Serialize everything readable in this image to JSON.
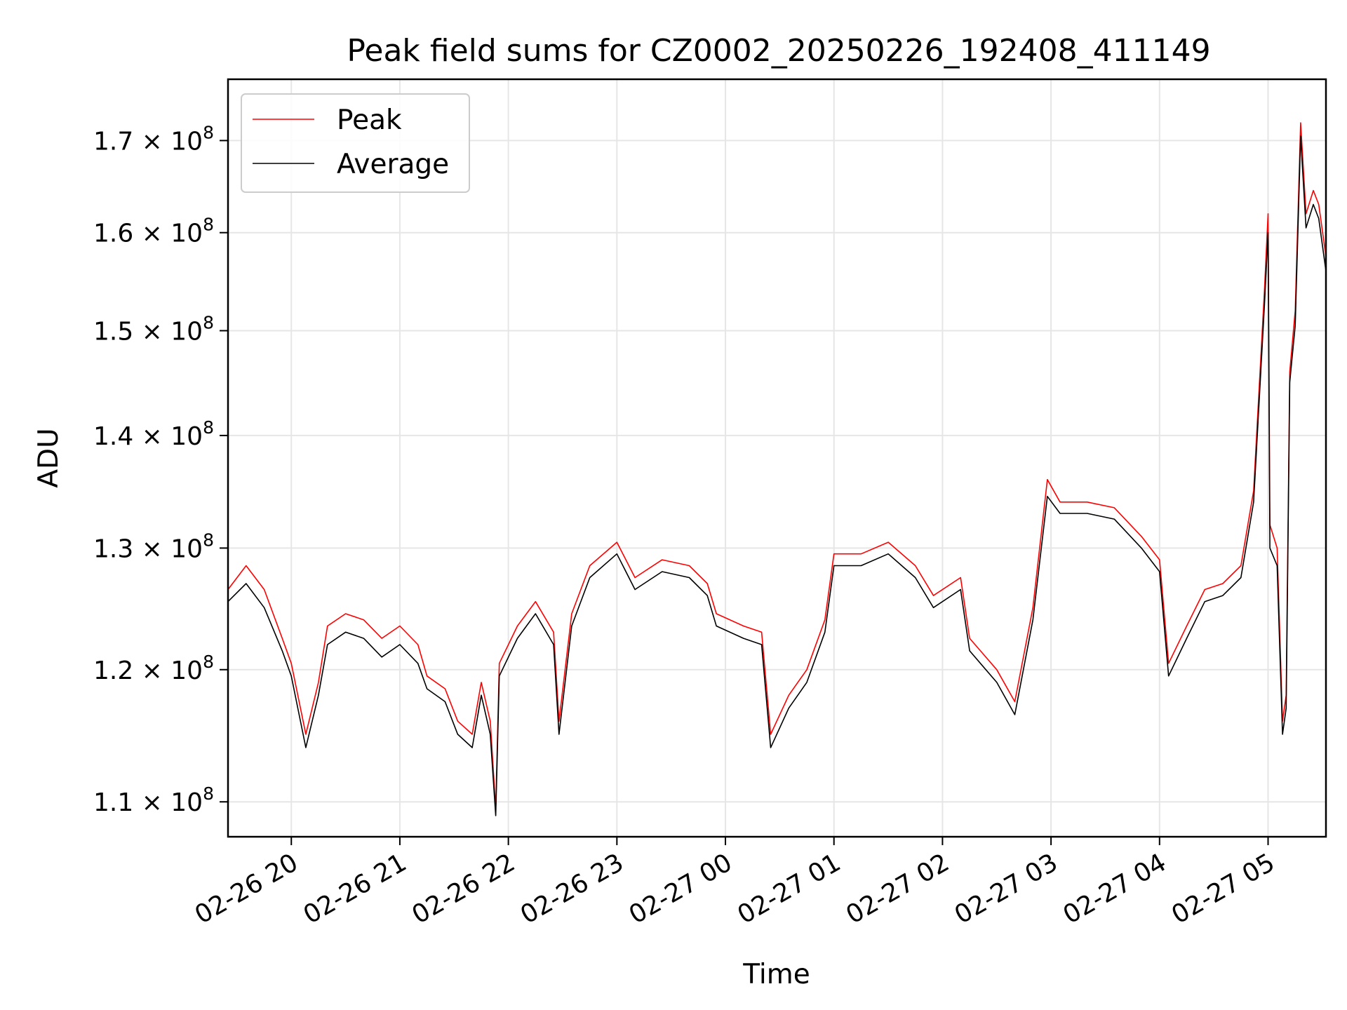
{
  "chart_data": {
    "type": "line",
    "title": "Peak field sums for CZ0002_20250226_192408_411149",
    "xlabel": "Time",
    "ylabel": "ADU",
    "yscale": "log",
    "grid": true,
    "legend_position": "top-left",
    "xlim": [
      "02-26 19:25",
      "02-27 05:32"
    ],
    "ylim": [
      107500000,
      177000000
    ],
    "x_ticks": [
      "02-26 20",
      "02-26 21",
      "02-26 22",
      "02-26 23",
      "02-27 00",
      "02-27 01",
      "02-27 02",
      "02-27 03",
      "02-27 04",
      "02-27 05"
    ],
    "y_ticks": [
      {
        "value": 110000000,
        "mantissa": "1.1",
        "times": "×",
        "base": "10",
        "exp": "8"
      },
      {
        "value": 120000000,
        "mantissa": "1.2",
        "times": "×",
        "base": "10",
        "exp": "8"
      },
      {
        "value": 130000000,
        "mantissa": "1.3",
        "times": "×",
        "base": "10",
        "exp": "8"
      },
      {
        "value": 140000000,
        "mantissa": "1.4",
        "times": "×",
        "base": "10",
        "exp": "8"
      },
      {
        "value": 150000000,
        "mantissa": "1.5",
        "times": "×",
        "base": "10",
        "exp": "8"
      },
      {
        "value": 160000000,
        "mantissa": "1.6",
        "times": "×",
        "base": "10",
        "exp": "8"
      },
      {
        "value": 170000000,
        "mantissa": "1.7",
        "times": "×",
        "base": "10",
        "exp": "8"
      }
    ],
    "series": [
      {
        "name": "Peak",
        "color": "#ff0000",
        "points": [
          [
            "02-26 19:25",
            126500000
          ],
          [
            "02-26 19:35",
            128500000
          ],
          [
            "02-26 19:45",
            126500000
          ],
          [
            "02-26 19:55",
            122500000
          ],
          [
            "02-26 20:00",
            120500000
          ],
          [
            "02-26 20:08",
            115000000
          ],
          [
            "02-26 20:15",
            119000000
          ],
          [
            "02-26 20:20",
            123500000
          ],
          [
            "02-26 20:30",
            124500000
          ],
          [
            "02-26 20:40",
            124000000
          ],
          [
            "02-26 20:50",
            122500000
          ],
          [
            "02-26 21:00",
            123500000
          ],
          [
            "02-26 21:10",
            122000000
          ],
          [
            "02-26 21:15",
            119500000
          ],
          [
            "02-26 21:25",
            118500000
          ],
          [
            "02-26 21:32",
            116000000
          ],
          [
            "02-26 21:40",
            115000000
          ],
          [
            "02-26 21:45",
            119000000
          ],
          [
            "02-26 21:50",
            116000000
          ],
          [
            "02-26 21:53",
            109500000
          ],
          [
            "02-26 21:55",
            120500000
          ],
          [
            "02-26 22:05",
            123500000
          ],
          [
            "02-26 22:15",
            125500000
          ],
          [
            "02-26 22:25",
            123000000
          ],
          [
            "02-26 22:28",
            116000000
          ],
          [
            "02-26 22:35",
            124500000
          ],
          [
            "02-26 22:45",
            128500000
          ],
          [
            "02-26 23:00",
            130500000
          ],
          [
            "02-26 23:10",
            127500000
          ],
          [
            "02-26 23:25",
            129000000
          ],
          [
            "02-26 23:40",
            128500000
          ],
          [
            "02-26 23:50",
            127000000
          ],
          [
            "02-26 23:55",
            124500000
          ],
          [
            "02-27 00:10",
            123500000
          ],
          [
            "02-27 00:20",
            123000000
          ],
          [
            "02-27 00:25",
            115000000
          ],
          [
            "02-27 00:35",
            118000000
          ],
          [
            "02-27 00:45",
            120000000
          ],
          [
            "02-27 00:55",
            124000000
          ],
          [
            "02-27 01:00",
            129500000
          ],
          [
            "02-27 01:15",
            129500000
          ],
          [
            "02-27 01:30",
            130500000
          ],
          [
            "02-27 01:45",
            128500000
          ],
          [
            "02-27 01:55",
            126000000
          ],
          [
            "02-27 02:10",
            127500000
          ],
          [
            "02-27 02:15",
            122500000
          ],
          [
            "02-27 02:30",
            120000000
          ],
          [
            "02-27 02:40",
            117500000
          ],
          [
            "02-27 02:50",
            125000000
          ],
          [
            "02-27 02:58",
            136000000
          ],
          [
            "02-27 03:05",
            134000000
          ],
          [
            "02-27 03:20",
            134000000
          ],
          [
            "02-27 03:35",
            133500000
          ],
          [
            "02-27 03:50",
            131000000
          ],
          [
            "02-27 04:00",
            129000000
          ],
          [
            "02-27 04:05",
            120500000
          ],
          [
            "02-27 04:15",
            123500000
          ],
          [
            "02-27 04:25",
            126500000
          ],
          [
            "02-27 04:35",
            127000000
          ],
          [
            "02-27 04:45",
            128500000
          ],
          [
            "02-27 04:52",
            135000000
          ],
          [
            "02-27 04:58",
            154000000
          ],
          [
            "02-27 05:00",
            162000000
          ],
          [
            "02-27 05:01",
            132000000
          ],
          [
            "02-27 05:05",
            130000000
          ],
          [
            "02-27 05:08",
            116000000
          ],
          [
            "02-27 05:10",
            118000000
          ],
          [
            "02-27 05:12",
            146000000
          ],
          [
            "02-27 05:15",
            152000000
          ],
          [
            "02-27 05:18",
            172000000
          ],
          [
            "02-27 05:21",
            162000000
          ],
          [
            "02-27 05:25",
            164500000
          ],
          [
            "02-27 05:28",
            163000000
          ],
          [
            "02-27 05:32",
            157500000
          ]
        ]
      },
      {
        "name": "Average",
        "color": "#000000",
        "points": [
          [
            "02-26 19:25",
            125500000
          ],
          [
            "02-26 19:35",
            127000000
          ],
          [
            "02-26 19:45",
            125000000
          ],
          [
            "02-26 19:55",
            121500000
          ],
          [
            "02-26 20:00",
            119500000
          ],
          [
            "02-26 20:08",
            114000000
          ],
          [
            "02-26 20:15",
            118000000
          ],
          [
            "02-26 20:20",
            122000000
          ],
          [
            "02-26 20:30",
            123000000
          ],
          [
            "02-26 20:40",
            122500000
          ],
          [
            "02-26 20:50",
            121000000
          ],
          [
            "02-26 21:00",
            122000000
          ],
          [
            "02-26 21:10",
            120500000
          ],
          [
            "02-26 21:15",
            118500000
          ],
          [
            "02-26 21:25",
            117500000
          ],
          [
            "02-26 21:32",
            115000000
          ],
          [
            "02-26 21:40",
            114000000
          ],
          [
            "02-26 21:45",
            118000000
          ],
          [
            "02-26 21:50",
            115000000
          ],
          [
            "02-26 21:53",
            109000000
          ],
          [
            "02-26 21:55",
            119500000
          ],
          [
            "02-26 22:05",
            122500000
          ],
          [
            "02-26 22:15",
            124500000
          ],
          [
            "02-26 22:25",
            122000000
          ],
          [
            "02-26 22:28",
            115000000
          ],
          [
            "02-26 22:35",
            123500000
          ],
          [
            "02-26 22:45",
            127500000
          ],
          [
            "02-26 23:00",
            129500000
          ],
          [
            "02-26 23:10",
            126500000
          ],
          [
            "02-26 23:25",
            128000000
          ],
          [
            "02-26 23:40",
            127500000
          ],
          [
            "02-26 23:50",
            126000000
          ],
          [
            "02-26 23:55",
            123500000
          ],
          [
            "02-27 00:10",
            122500000
          ],
          [
            "02-27 00:20",
            122000000
          ],
          [
            "02-27 00:25",
            114000000
          ],
          [
            "02-27 00:35",
            117000000
          ],
          [
            "02-27 00:45",
            119000000
          ],
          [
            "02-27 00:55",
            123000000
          ],
          [
            "02-27 01:00",
            128500000
          ],
          [
            "02-27 01:15",
            128500000
          ],
          [
            "02-27 01:30",
            129500000
          ],
          [
            "02-27 01:45",
            127500000
          ],
          [
            "02-27 01:55",
            125000000
          ],
          [
            "02-27 02:10",
            126500000
          ],
          [
            "02-27 02:15",
            121500000
          ],
          [
            "02-27 02:30",
            119000000
          ],
          [
            "02-27 02:40",
            116500000
          ],
          [
            "02-27 02:50",
            124000000
          ],
          [
            "02-27 02:58",
            134500000
          ],
          [
            "02-27 03:05",
            133000000
          ],
          [
            "02-27 03:20",
            133000000
          ],
          [
            "02-27 03:35",
            132500000
          ],
          [
            "02-27 03:50",
            130000000
          ],
          [
            "02-27 04:00",
            128000000
          ],
          [
            "02-27 04:05",
            119500000
          ],
          [
            "02-27 04:15",
            122500000
          ],
          [
            "02-27 04:25",
            125500000
          ],
          [
            "02-27 04:35",
            126000000
          ],
          [
            "02-27 04:45",
            127500000
          ],
          [
            "02-27 04:52",
            134000000
          ],
          [
            "02-27 04:58",
            152500000
          ],
          [
            "02-27 05:00",
            160000000
          ],
          [
            "02-27 05:01",
            130000000
          ],
          [
            "02-27 05:05",
            128500000
          ],
          [
            "02-27 05:08",
            115000000
          ],
          [
            "02-27 05:10",
            117000000
          ],
          [
            "02-27 05:12",
            145000000
          ],
          [
            "02-27 05:15",
            150500000
          ],
          [
            "02-27 05:18",
            170500000
          ],
          [
            "02-27 05:21",
            160500000
          ],
          [
            "02-27 05:25",
            163000000
          ],
          [
            "02-27 05:28",
            161500000
          ],
          [
            "02-27 05:32",
            156000000
          ]
        ]
      }
    ]
  }
}
